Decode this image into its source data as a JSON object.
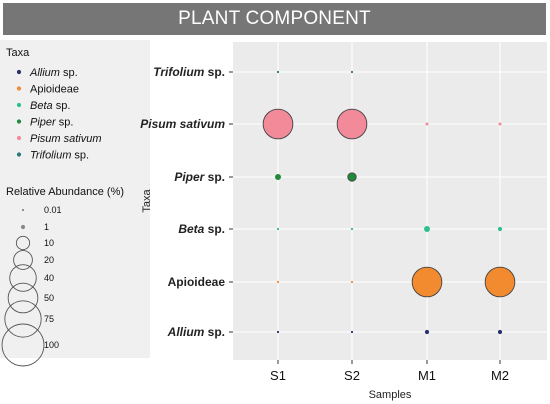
{
  "banner_title": "PLANT COMPONENT",
  "chart_data": {
    "type": "scatter",
    "title": "PLANT COMPONENT",
    "xlabel": "Samples",
    "ylabel": "Taxa",
    "x_categories": [
      "S1",
      "S2",
      "M1",
      "M2"
    ],
    "y_categories": [
      {
        "label": "Allium sp.",
        "italic_part": "Allium",
        "plain_part": " sp."
      },
      {
        "label": "Apioideae",
        "italic_part": "",
        "plain_part": "Apioideae"
      },
      {
        "label": "Beta sp.",
        "italic_part": "Beta",
        "plain_part": " sp."
      },
      {
        "label": "Piper sp.",
        "italic_part": "Piper",
        "plain_part": " sp."
      },
      {
        "label": "Pisum sativum",
        "italic_part": "Pisum sativum",
        "plain_part": ""
      },
      {
        "label": "Trifolium sp.",
        "italic_part": "Trifolium",
        "plain_part": " sp."
      }
    ],
    "series": [
      {
        "name": "Allium sp.",
        "color": "#2b2f6e",
        "values": [
          0.01,
          0.01,
          1,
          1
        ]
      },
      {
        "name": "Apioideae",
        "color": "#f28a30",
        "values": [
          0.01,
          0.01,
          50,
          50
        ]
      },
      {
        "name": "Beta sp.",
        "color": "#2fbf8f",
        "values": [
          0.01,
          0.01,
          2,
          1
        ]
      },
      {
        "name": "Piper sp.",
        "color": "#1f8a3a",
        "values": [
          2,
          4,
          0,
          0
        ]
      },
      {
        "name": "Pisum sativum",
        "color": "#f28a9a",
        "values": [
          50,
          50,
          0.5,
          0.5
        ]
      },
      {
        "name": "Trifolium sp.",
        "color": "#2a7a7a",
        "values": [
          0.01,
          0.01,
          0,
          0
        ]
      }
    ],
    "legend": {
      "color_title": "Taxa",
      "color_entries": [
        {
          "italic_part": "Allium",
          "plain_part": " sp.",
          "color": "#2b2f6e"
        },
        {
          "italic_part": "",
          "plain_part": "Apioideae",
          "color": "#f28a30"
        },
        {
          "italic_part": "Beta",
          "plain_part": " sp.",
          "color": "#2fbf8f"
        },
        {
          "italic_part": "Piper",
          "plain_part": " sp.",
          "color": "#1f8a3a"
        },
        {
          "italic_part": "Pisum sativum",
          "plain_part": "",
          "color": "#f28a9a"
        },
        {
          "italic_part": "Trifolium",
          "plain_part": " sp.",
          "color": "#2a7a7a"
        }
      ],
      "size_title": "Relative Abundance (%)",
      "size_entries": [
        "0.01",
        "1",
        "10",
        "20",
        "40",
        "50",
        "75",
        "100"
      ],
      "size_values": [
        0.01,
        1,
        10,
        20,
        40,
        50,
        75,
        100
      ],
      "placement": "left"
    },
    "grid": true,
    "panel_background": "#ebebeb"
  }
}
